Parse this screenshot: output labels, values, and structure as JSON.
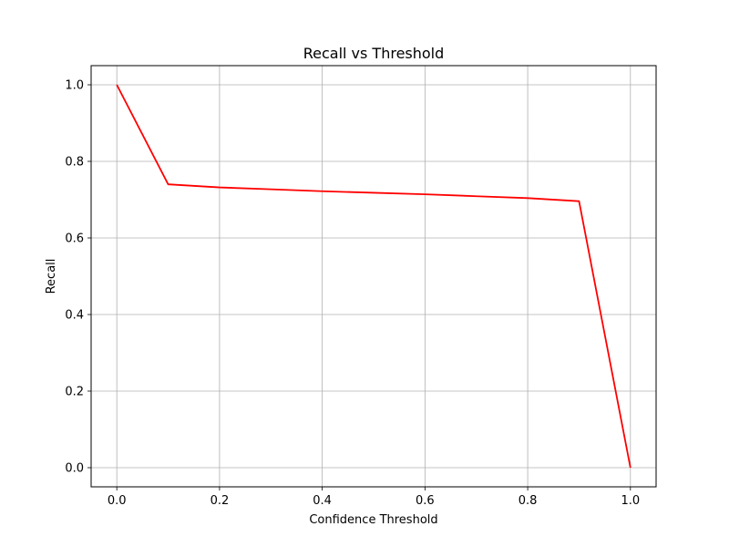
{
  "chart_data": {
    "type": "line",
    "title": "Recall vs Threshold",
    "xlabel": "Confidence Threshold",
    "ylabel": "Recall",
    "xlim": [
      -0.05,
      1.05
    ],
    "ylim": [
      -0.05,
      1.05
    ],
    "x_ticks": [
      0.0,
      0.2,
      0.4,
      0.6,
      0.8,
      1.0
    ],
    "y_ticks": [
      0.0,
      0.2,
      0.4,
      0.6,
      0.8,
      1.0
    ],
    "x_tick_labels": [
      "0.0",
      "0.2",
      "0.4",
      "0.6",
      "0.8",
      "1.0"
    ],
    "y_tick_labels": [
      "0.0",
      "0.2",
      "0.4",
      "0.6",
      "0.8",
      "1.0"
    ],
    "grid": true,
    "series": [
      {
        "color": "#ff0000",
        "x": [
          0.0,
          0.1,
          0.2,
          0.3,
          0.4,
          0.5,
          0.6,
          0.7,
          0.8,
          0.9,
          1.0
        ],
        "y": [
          1.0,
          0.74,
          0.732,
          0.727,
          0.722,
          0.718,
          0.714,
          0.709,
          0.704,
          0.696,
          0.0
        ]
      }
    ]
  }
}
